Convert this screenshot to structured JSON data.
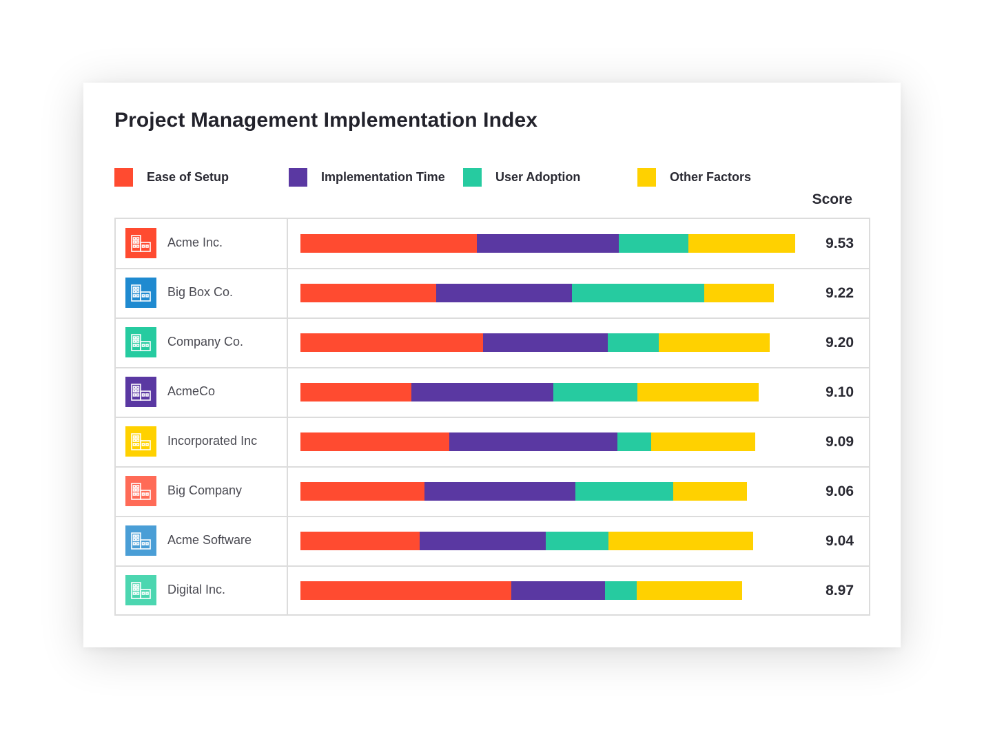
{
  "title": "Project Management Implementation Index",
  "score_header": "Score",
  "icons": {
    "logo": "building-icon"
  },
  "colors": {
    "ease_of_setup": "#ff4b30",
    "implementation_time": "#5a38a2",
    "user_adoption": "#26cba0",
    "other_factors": "#ffd100"
  },
  "legend": [
    {
      "label": "Ease of Setup",
      "color": "#ff4b30"
    },
    {
      "label": "Implementation Time",
      "color": "#5a38a2"
    },
    {
      "label": "User Adoption",
      "color": "#26cba0"
    },
    {
      "label": "Other Factors",
      "color": "#ffd100"
    }
  ],
  "chart_data": {
    "type": "bar",
    "orientation": "horizontal",
    "stacked": true,
    "title": "Project Management Implementation Index",
    "categories": [
      "Acme Inc.",
      "Big Box Co.",
      "Company Co.",
      "AcmeCo",
      "Incorporated Inc",
      "Big Company",
      "Acme Software",
      "Digital Inc."
    ],
    "scores": [
      "9.53",
      "9.22",
      "9.20",
      "9.10",
      "9.09",
      "9.06",
      "9.04",
      "8.97"
    ],
    "logo_colors": [
      "#ff4b30",
      "#1f8ad0",
      "#26cba0",
      "#5a38a2",
      "#ffd100",
      "#ff6b57",
      "#4a9ed6",
      "#4cd6b0"
    ],
    "series": [
      {
        "name": "Ease of Setup",
        "color": "#ff4b30",
        "values": [
          3.39,
          2.61,
          3.51,
          2.13,
          2.86,
          2.39,
          2.29,
          4.06
        ]
      },
      {
        "name": "Implementation Time",
        "color": "#5a38a2",
        "values": [
          2.74,
          2.61,
          2.41,
          2.74,
          3.24,
          2.9,
          2.43,
          1.8
        ]
      },
      {
        "name": "User Adoption",
        "color": "#26cba0",
        "values": [
          1.34,
          2.55,
          0.98,
          1.62,
          0.65,
          1.88,
          1.21,
          0.61
        ]
      },
      {
        "name": "Other Factors",
        "color": "#ffd100",
        "values": [
          2.06,
          1.34,
          2.13,
          2.33,
          2.0,
          1.43,
          2.79,
          2.03
        ]
      }
    ],
    "legend_position": "top",
    "grid": false
  }
}
